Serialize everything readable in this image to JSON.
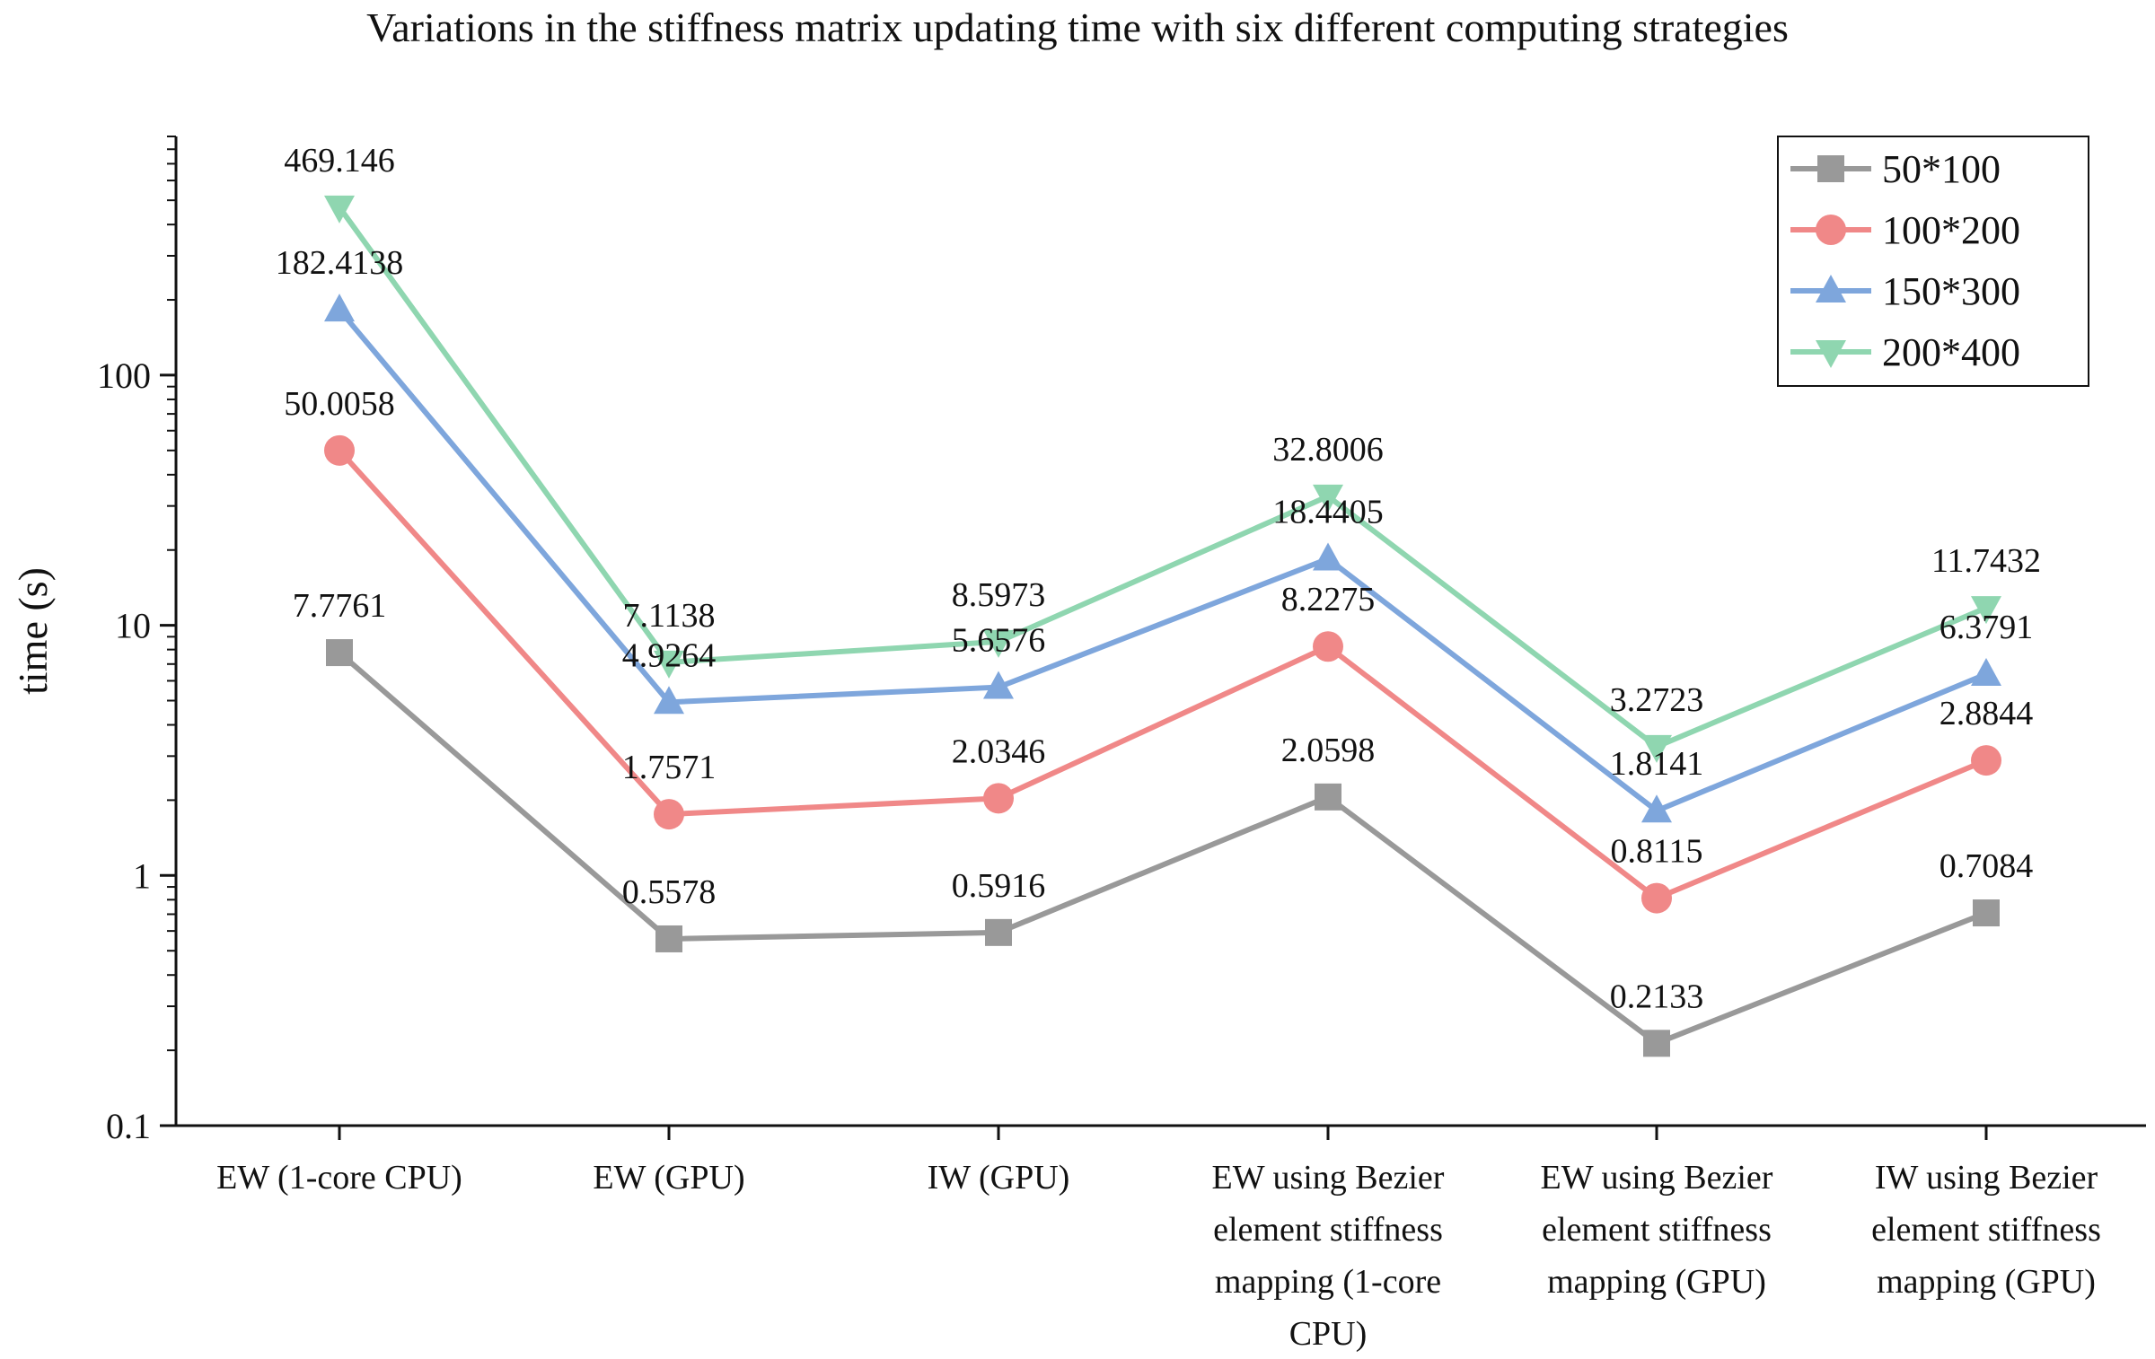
{
  "chart_data": {
    "type": "line",
    "title": "Variations in the stiffness matrix updating time with six different computing strategies",
    "xlabel": "",
    "ylabel": "time (s)",
    "y_scale": "log",
    "ylim": [
      0.1,
      900
    ],
    "y_ticks": [
      "0.1",
      "1",
      "10",
      "100"
    ],
    "grid": false,
    "legend_position": "top-right",
    "categories": [
      [
        "EW (1-core CPU)"
      ],
      [
        "EW (GPU)"
      ],
      [
        "IW (GPU)"
      ],
      [
        "EW using Bezier",
        "element stiffness",
        "mapping (1-core",
        "CPU)"
      ],
      [
        "EW using Bezier",
        "element stiffness",
        "mapping (GPU)"
      ],
      [
        "IW using Bezier",
        "element stiffness",
        "mapping (GPU)"
      ]
    ],
    "series": [
      {
        "name": "50*100",
        "color": "#999999",
        "marker": "square",
        "values": [
          7.7761,
          0.5578,
          0.5916,
          2.0598,
          0.2133,
          0.7084
        ],
        "labels": [
          "7.7761",
          "0.5578",
          "0.5916",
          "2.0598",
          "0.2133",
          "0.7084"
        ]
      },
      {
        "name": "100*200",
        "color": "#f08888",
        "marker": "circle",
        "values": [
          50.0058,
          1.7571,
          2.0346,
          8.2275,
          0.8115,
          2.8844
        ],
        "labels": [
          "50.0058",
          "1.7571",
          "2.0346",
          "8.2275",
          "0.8115",
          "2.8844"
        ]
      },
      {
        "name": "150*300",
        "color": "#7ea6dc",
        "marker": "triangle-up",
        "values": [
          182.4138,
          4.9264,
          5.6576,
          18.4405,
          1.8141,
          6.3791
        ],
        "labels": [
          "182.4138",
          "4.9264",
          "5.6576",
          "18.4405",
          "1.8141",
          "6.3791"
        ]
      },
      {
        "name": "200*400",
        "color": "#8fd6b0",
        "marker": "triangle-down",
        "values": [
          469.146,
          7.1138,
          8.5973,
          32.8006,
          3.2723,
          11.7432
        ],
        "labels": [
          "469.146",
          "7.1138",
          "8.5973",
          "32.8006",
          "3.2723",
          "11.7432"
        ]
      }
    ]
  }
}
